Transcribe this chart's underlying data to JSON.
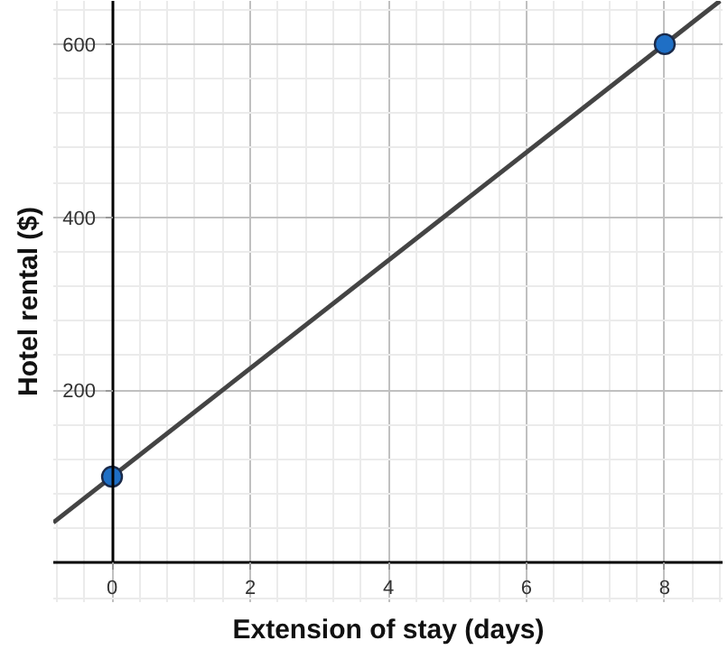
{
  "chart_data": {
    "type": "line",
    "xlabel": "Extension of stay (days)",
    "ylabel": "Hotel rental ($)",
    "xlim": [
      -0.85,
      8.85
    ],
    "ylim": [
      -45,
      650
    ],
    "xticks": [
      0,
      2,
      4,
      6,
      8
    ],
    "yticks": [
      200,
      400,
      600
    ],
    "grid": true,
    "series": [
      {
        "x": [
          -0.85,
          8.8
        ],
        "values": [
          47,
          650
        ],
        "color": "#444444",
        "marker": "none",
        "line_style": "solid"
      },
      {
        "type": "scatter",
        "x": [
          0,
          8
        ],
        "values": [
          100,
          600
        ],
        "color": "#1f6fc5",
        "marker": "circle"
      }
    ]
  }
}
